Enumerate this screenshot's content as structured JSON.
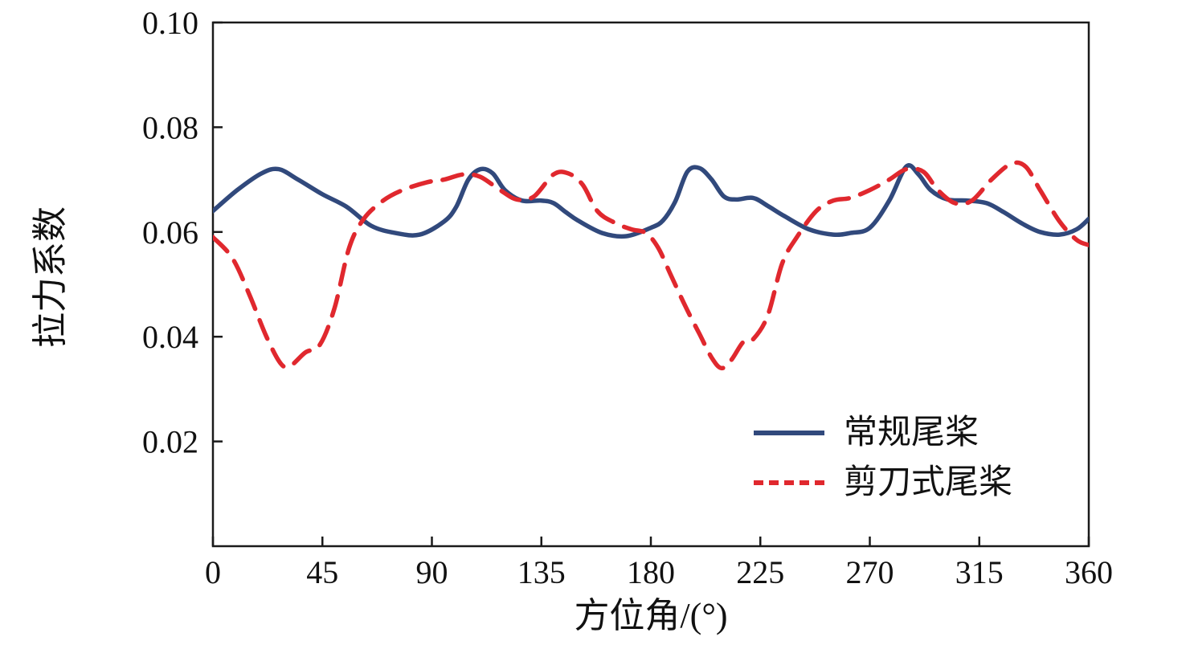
{
  "chart_data": {
    "type": "line",
    "title": "",
    "xlabel": "方位角/(°)",
    "ylabel": "拉力系数",
    "xlim": [
      0,
      360
    ],
    "ylim": [
      0,
      0.1
    ],
    "grid": false,
    "legend_position": "inside lower right",
    "frame": "full box",
    "axis_color": "#1a1a1a",
    "xticks": {
      "values": [
        0,
        45,
        90,
        135,
        180,
        225,
        270,
        315,
        360
      ],
      "labels": [
        "0",
        "45",
        "90",
        "135",
        "180",
        "225",
        "270",
        "315",
        "360"
      ]
    },
    "yticks": {
      "values": [
        0.02,
        0.04,
        0.06,
        0.08,
        0.1
      ],
      "labels": [
        "0.02",
        "0.04",
        "0.06",
        "0.08",
        "0.10"
      ]
    },
    "series": [
      {
        "name": "常规尾桨",
        "style": "solid",
        "color": "#31497c",
        "x": [
          0,
          10,
          20,
          27,
          35,
          45,
          55,
          65,
          75,
          85,
          95,
          100,
          105,
          110,
          115,
          120,
          127,
          135,
          140,
          145,
          150,
          160,
          170,
          180,
          185,
          190,
          195,
          200,
          205,
          210,
          215,
          222,
          228,
          235,
          245,
          255,
          262,
          270,
          278,
          285,
          290,
          295,
          302,
          310,
          318,
          325,
          333,
          340,
          348,
          355,
          360
        ],
        "y": [
          0.064,
          0.068,
          0.0712,
          0.072,
          0.07,
          0.0672,
          0.0648,
          0.0612,
          0.0598,
          0.0595,
          0.062,
          0.0648,
          0.07,
          0.072,
          0.0712,
          0.068,
          0.066,
          0.066,
          0.0655,
          0.0638,
          0.0622,
          0.0598,
          0.0592,
          0.0608,
          0.0622,
          0.0658,
          0.0715,
          0.0722,
          0.07,
          0.0668,
          0.0662,
          0.0665,
          0.065,
          0.063,
          0.0605,
          0.0595,
          0.0598,
          0.0608,
          0.066,
          0.0725,
          0.071,
          0.068,
          0.0662,
          0.066,
          0.0655,
          0.0638,
          0.0615,
          0.06,
          0.0595,
          0.0605,
          0.0625
        ]
      },
      {
        "name": "剪刀式尾桨",
        "style": "dashed",
        "color": "#e0282e",
        "x": [
          0,
          8,
          15,
          22,
          28,
          32,
          38,
          44,
          50,
          56,
          62,
          70,
          78,
          88,
          95,
          103,
          110,
          118,
          125,
          132,
          140,
          146,
          152,
          158,
          165,
          172,
          178,
          183,
          188,
          194,
          200,
          205,
          209,
          213,
          218,
          222,
          228,
          234,
          240,
          248,
          255,
          262,
          270,
          278,
          285,
          292,
          298,
          305,
          312,
          320,
          328,
          334,
          340,
          348,
          355,
          360
        ],
        "y": [
          0.059,
          0.055,
          0.048,
          0.04,
          0.0348,
          0.0345,
          0.037,
          0.0385,
          0.0455,
          0.057,
          0.0625,
          0.066,
          0.068,
          0.0695,
          0.07,
          0.071,
          0.0705,
          0.068,
          0.0662,
          0.0668,
          0.071,
          0.0712,
          0.069,
          0.064,
          0.0618,
          0.0605,
          0.0598,
          0.057,
          0.052,
          0.046,
          0.0405,
          0.036,
          0.034,
          0.0355,
          0.039,
          0.0395,
          0.044,
          0.054,
          0.059,
          0.064,
          0.066,
          0.0665,
          0.068,
          0.07,
          0.072,
          0.0715,
          0.068,
          0.0655,
          0.066,
          0.07,
          0.073,
          0.0725,
          0.068,
          0.062,
          0.0585,
          0.0575
        ]
      }
    ]
  }
}
